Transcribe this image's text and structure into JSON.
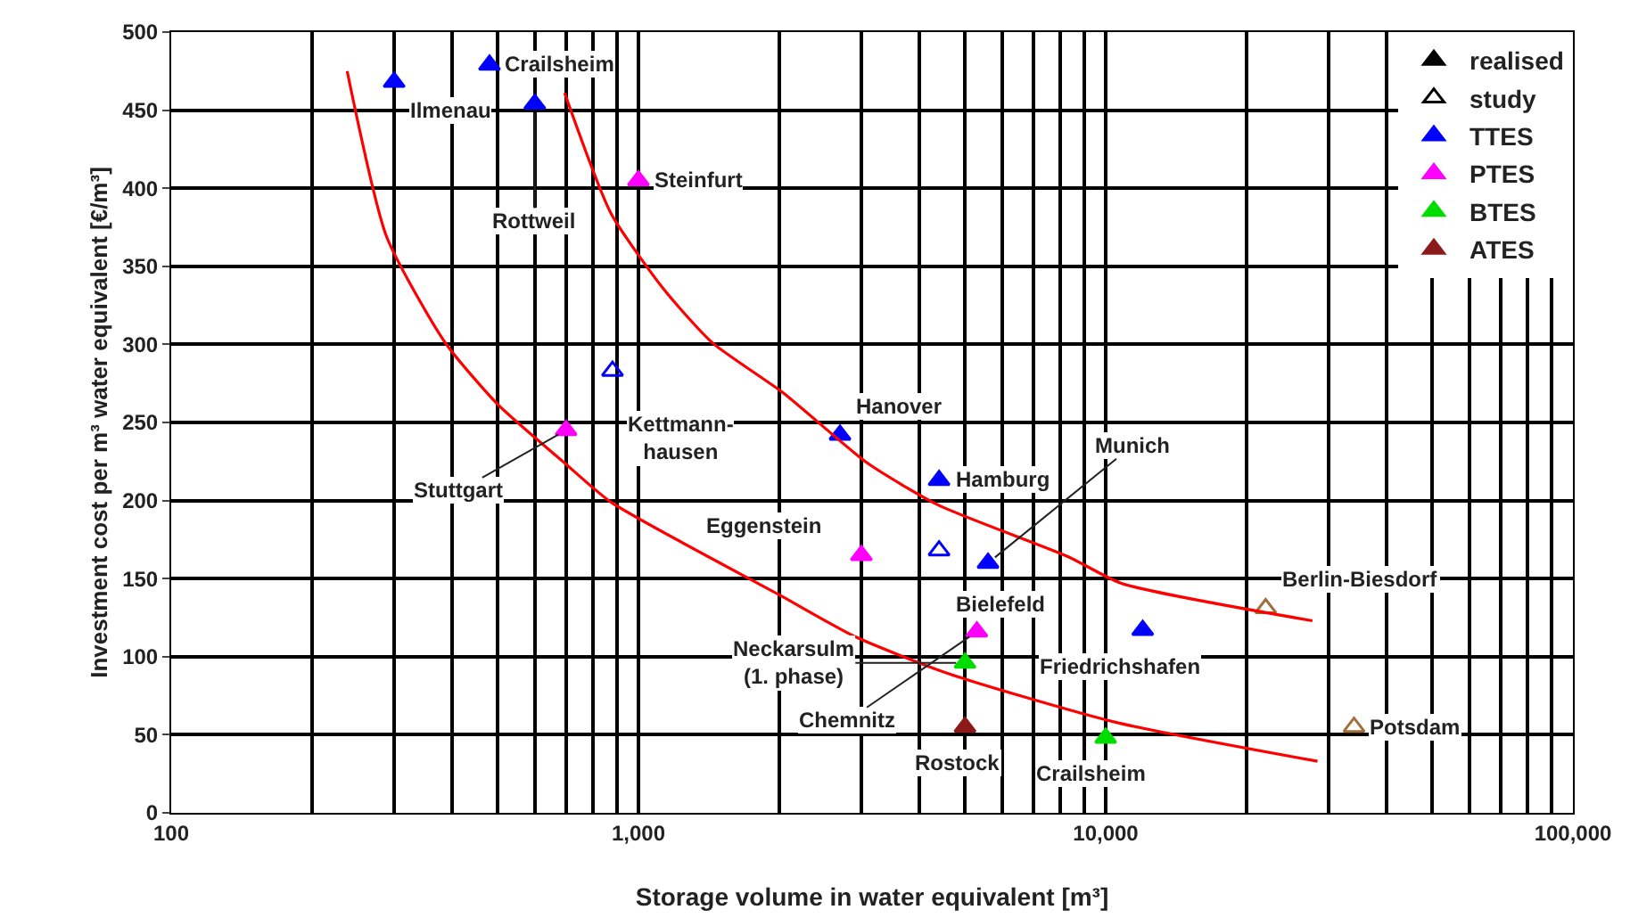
{
  "chart_data": {
    "type": "scatter",
    "xlabel": "Storage volume in water equivalent [m³]",
    "ylabel": "Investment cost per m³ water equivalent [€/m³]",
    "log": "x",
    "xlim": [
      100,
      100000
    ],
    "xticks": [
      100,
      {
        "value": 1000,
        "label": "1,000"
      },
      {
        "value": 10000,
        "label": "10,000"
      },
      {
        "value": 100000,
        "label": "100,000"
      }
    ],
    "ylim": [
      0,
      500
    ],
    "yticks": [
      0,
      50,
      100,
      150,
      200,
      250,
      300,
      350,
      400,
      450,
      500
    ],
    "grid": true,
    "legend": "top right",
    "marker": "triangle",
    "series": [
      {
        "name": "realised",
        "color": "#000000"
      },
      {
        "name": "study",
        "color": "#000000",
        "marker": "triangle-open"
      },
      {
        "name": "TTES",
        "color": "#0000ff",
        "x": [
          300,
          480,
          600,
          2700,
          4400,
          5600,
          12000
        ],
        "values": [
          468,
          479,
          454,
          242,
          213,
          160,
          117
        ]
      },
      {
        "color": "#0000ff",
        "marker": "triangle-open",
        "x": [
          880,
          4400
        ],
        "values": [
          283,
          168
        ]
      },
      {
        "name": "PTES",
        "color": "#ff00ff",
        "x": [
          1000,
          700,
          3000,
          5300
        ],
        "values": [
          405,
          245,
          165,
          116
        ]
      },
      {
        "name": "BTES",
        "color": "#00dd00",
        "x": [
          5000,
          10000
        ],
        "values": [
          96,
          48
        ]
      },
      {
        "name": "ATES",
        "color": "#8b1a1a",
        "x": [
          5000
        ],
        "values": [
          55
        ]
      },
      {
        "color": "#a0703a",
        "marker": "triangle-open",
        "x": [
          22000,
          34000
        ],
        "values": [
          131,
          55
        ]
      },
      {
        "type": "line",
        "color": "#ff0000",
        "marker": "none",
        "x": [
          238,
          289,
          386,
          502,
          695,
          873,
          1990,
          2900,
          4620,
          10500,
          28400
        ],
        "values": [
          475,
          369,
          301,
          261,
          224,
          199,
          140,
          113,
          89,
          58,
          33
        ]
      },
      {
        "type": "line",
        "color": "#ff0000",
        "marker": "none",
        "x": [
          695,
          873,
          1135,
          1440,
          2040,
          3090,
          4390,
          8320,
          10800,
          27700
        ],
        "values": [
          461,
          384,
          335,
          301,
          269,
          224,
          197,
          164,
          147,
          123
        ]
      }
    ],
    "annotations": [
      {
        "text": "Ilmenau",
        "x": 300,
        "y": 468
      },
      {
        "text": "Crailsheim",
        "x": 480,
        "y": 479
      },
      {
        "text": "Rottweil",
        "x": 600,
        "y": 454
      },
      {
        "text": "Steinfurt",
        "x": 1000,
        "y": 405
      },
      {
        "text": "Kettmann-\nhausen",
        "x": 880,
        "y": 283
      },
      {
        "text": "Stuttgart",
        "x": 700,
        "y": 245
      },
      {
        "text": "Hanover",
        "x": 2700,
        "y": 242
      },
      {
        "text": "Hamburg",
        "x": 4400,
        "y": 213
      },
      {
        "text": "Bielefeld",
        "x": 4400,
        "y": 168
      },
      {
        "text": "Eggenstein",
        "x": 3000,
        "y": 165
      },
      {
        "text": "Munich",
        "x": 5600,
        "y": 160
      },
      {
        "text": "Chemnitz",
        "x": 5300,
        "y": 116
      },
      {
        "text": "Neckarsulm\n(1. phase)",
        "x": 5000,
        "y": 96
      },
      {
        "text": "Rostock",
        "x": 5000,
        "y": 55
      },
      {
        "text": "Crailsheim",
        "x": 10000,
        "y": 48
      },
      {
        "text": "Friedrichshafen",
        "x": 12000,
        "y": 117
      },
      {
        "text": "Berlin-Biesdorf",
        "x": 22000,
        "y": 131
      },
      {
        "text": "Potsdam",
        "x": 34000,
        "y": 55
      }
    ]
  }
}
